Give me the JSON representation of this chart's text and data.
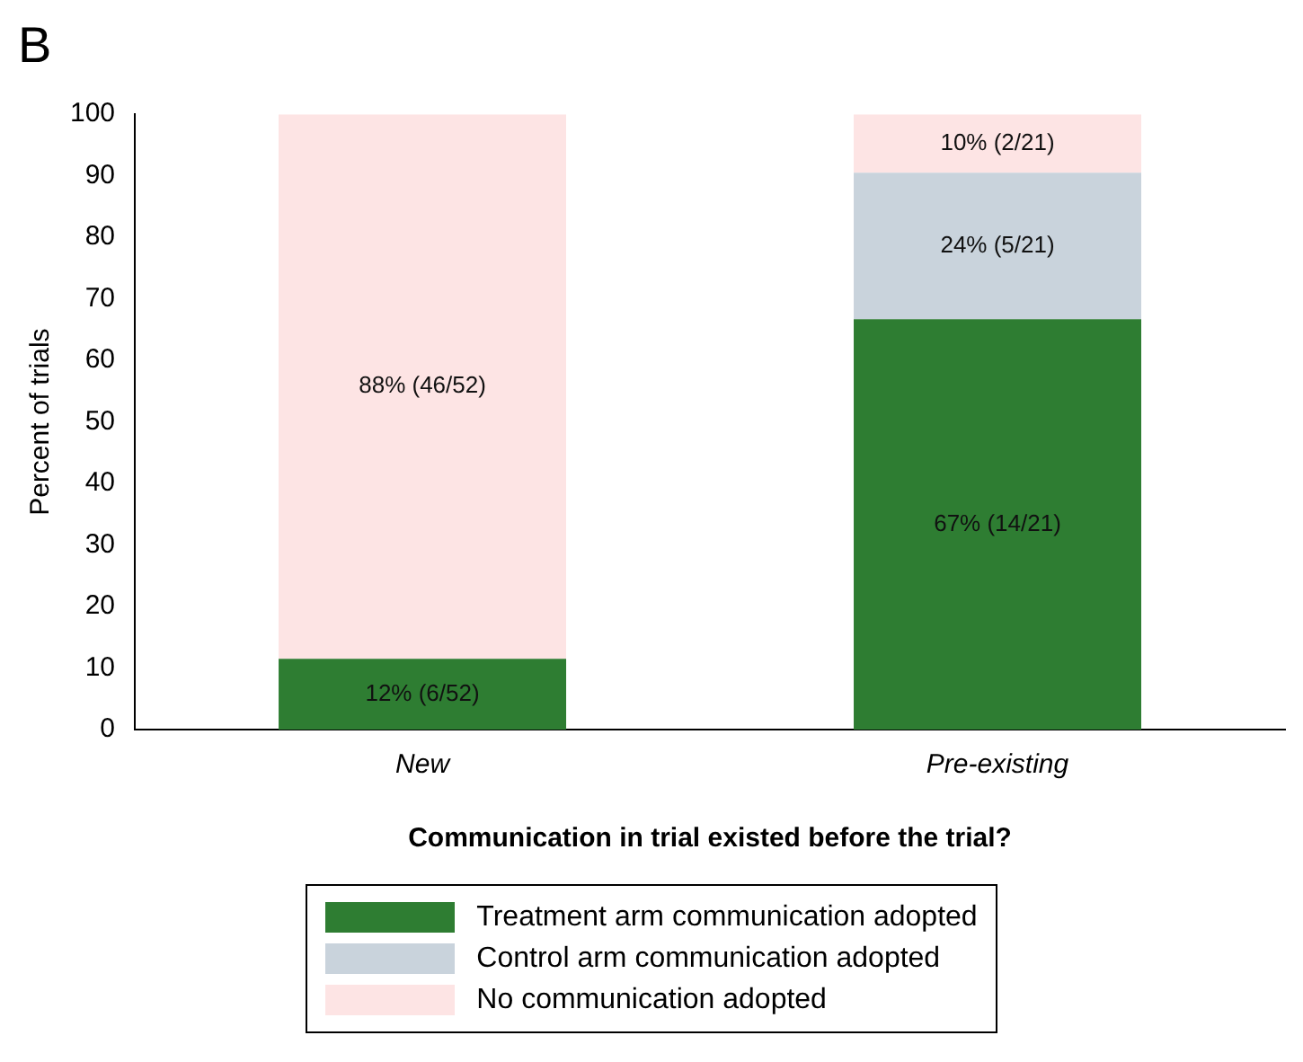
{
  "chart_data": {
    "type": "bar",
    "title": "B",
    "xlabel": "Communication in trial existed before the trial?",
    "ylabel": "Percent of trials",
    "categories": [
      "New",
      "Pre-existing"
    ],
    "stacked": true,
    "series": [
      {
        "name": "Treatment arm communication adopted",
        "color": "#2e7d32",
        "values": [
          11.5,
          66.7
        ],
        "value_labels": [
          "12% (6/52)",
          "67% (14/21)"
        ]
      },
      {
        "name": "Control arm communication adopted",
        "color": "#c9d3dc",
        "values": [
          0,
          23.8
        ],
        "value_labels": [
          null,
          "24% (5/21)"
        ]
      },
      {
        "name": "No communication adopted",
        "color": "#fde4e4",
        "values": [
          88.5,
          9.5
        ],
        "value_labels": [
          "88% (46/52)",
          "10% (2/21)"
        ]
      }
    ],
    "ylim": [
      0,
      100
    ],
    "yticks": [
      0,
      10,
      20,
      30,
      40,
      50,
      60,
      70,
      80,
      90,
      100
    ],
    "grid": false,
    "legend": "bottom"
  }
}
